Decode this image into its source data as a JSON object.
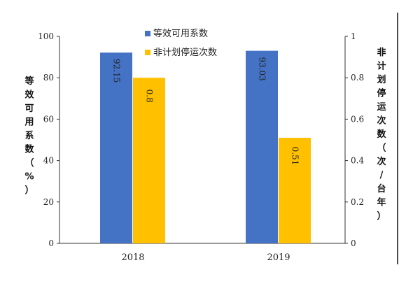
{
  "chart_data": {
    "type": "bar",
    "categories": [
      "2018",
      "2019"
    ],
    "series": [
      {
        "name": "等效可用系数",
        "axis": "left",
        "color": "#4472C4",
        "values": [
          92.15,
          93.03
        ],
        "labels": [
          "92.15",
          "93.03"
        ]
      },
      {
        "name": "非计划停运次数",
        "axis": "right",
        "color": "#FFC000",
        "values": [
          0.8,
          0.51
        ],
        "labels": [
          "0.8",
          "0.51"
        ]
      }
    ],
    "y_left": {
      "label": "等效可用系数（%）",
      "ylim": [
        0,
        100
      ],
      "ticks": [
        "0",
        "20",
        "40",
        "60",
        "80",
        "100"
      ]
    },
    "y_right": {
      "label": "非计划停运次数（次/台年）",
      "ylim": [
        0,
        1
      ],
      "ticks": [
        "0",
        "0.2",
        "0.4",
        "0.6",
        "0.8",
        "1"
      ]
    },
    "grid": false,
    "legend_position": "top-center"
  }
}
